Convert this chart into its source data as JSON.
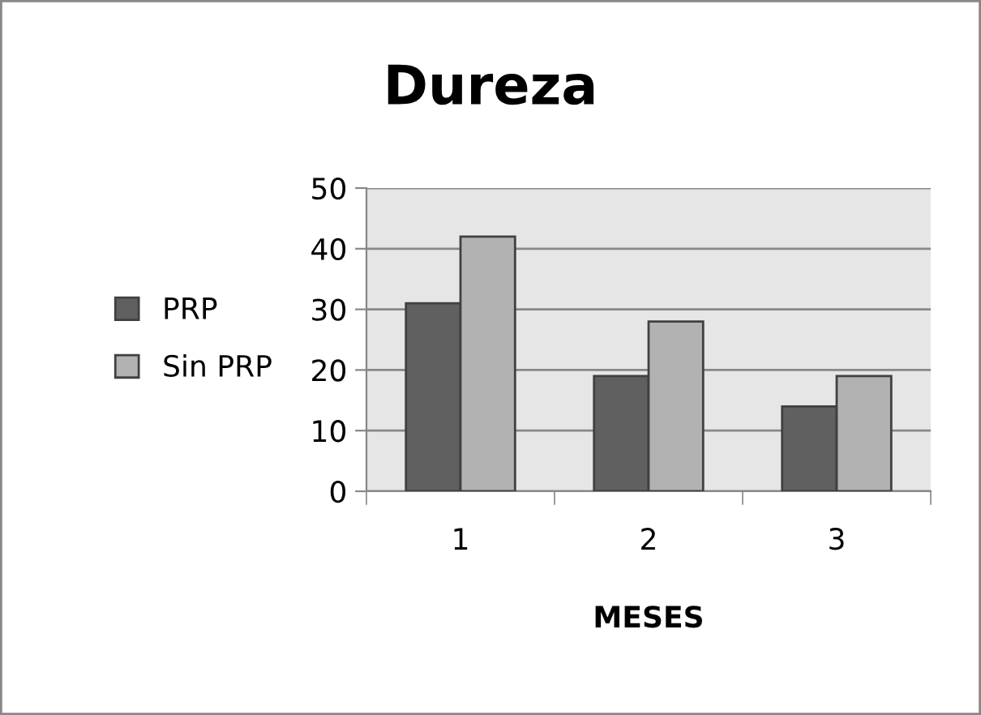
{
  "chart_data": {
    "type": "bar",
    "title": "Dureza",
    "xlabel": "MESES",
    "categories": [
      "1",
      "2",
      "3"
    ],
    "series": [
      {
        "name": "PRP",
        "color": "#606060",
        "values": [
          31,
          19,
          14
        ]
      },
      {
        "name": "Sin PRP",
        "color": "#b2b2b2",
        "values": [
          42,
          28,
          19
        ]
      }
    ],
    "ylim": [
      0,
      50
    ],
    "yticks": [
      0,
      10,
      20,
      30,
      40,
      50
    ],
    "grid": "y",
    "legend": "left"
  }
}
